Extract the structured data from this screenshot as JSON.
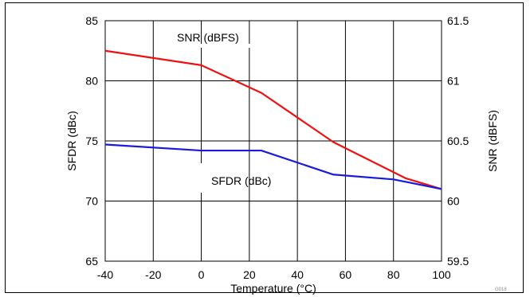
{
  "figure_id": "G018",
  "chart_data": {
    "type": "line",
    "xlabel": "Temperature (°C)",
    "ylabel_left": "SFDR (dBc)",
    "ylabel_right": "SNR (dBFS)",
    "xlim": [
      -40,
      100
    ],
    "ylim_left": [
      65,
      85
    ],
    "ylim_right": [
      59.5,
      61.5
    ],
    "x_ticks": [
      "-40",
      "-20",
      "0",
      "20",
      "40",
      "60",
      "80",
      "100"
    ],
    "y_ticks_left": [
      "65",
      "70",
      "75",
      "80",
      "85"
    ],
    "y_ticks_right": [
      "59.5",
      "60",
      "60.5",
      "61",
      "61.5"
    ],
    "grid": true,
    "series": [
      {
        "name": "SNR (dBFS)",
        "axis": "right",
        "color": "#ee1111",
        "x": [
          -40,
          0,
          25,
          55,
          85,
          100
        ],
        "y": [
          61.25,
          61.13,
          60.9,
          60.49,
          60.19,
          60.1
        ]
      },
      {
        "name": "SFDR (dBc)",
        "axis": "left",
        "color": "#1a1add",
        "x": [
          -40,
          0,
          25,
          55,
          80,
          100
        ],
        "y": [
          74.7,
          74.2,
          74.2,
          72.2,
          71.8,
          71.0
        ]
      }
    ]
  }
}
